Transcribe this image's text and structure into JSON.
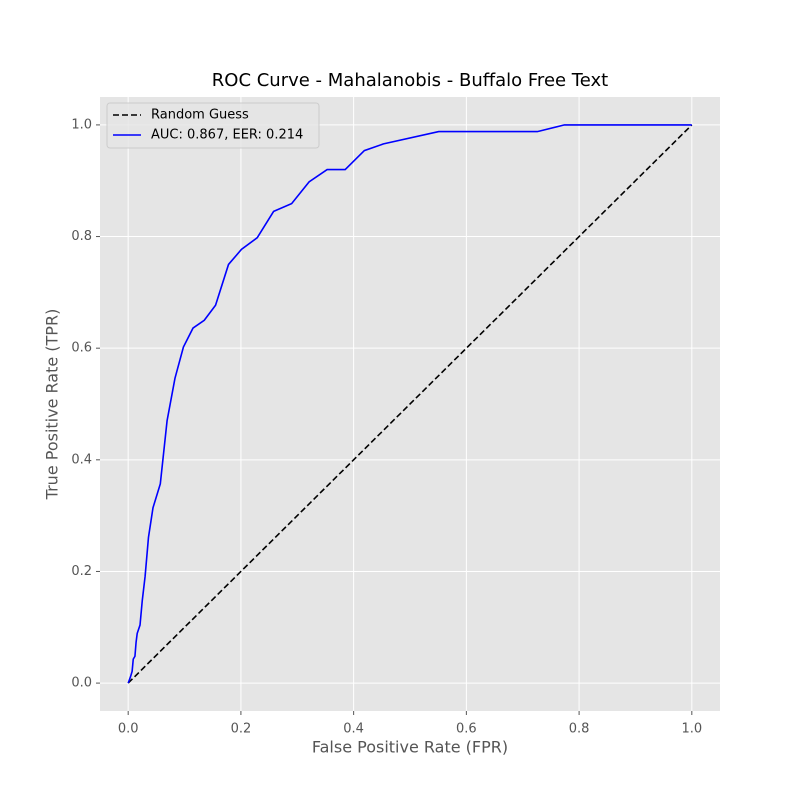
{
  "chart_data": {
    "type": "line",
    "title": "ROC Curve - Mahalanobis - Buffalo Free Text",
    "x_label": "False Positive Rate (FPR)",
    "y_label": "True Positive Rate (TPR)",
    "xlim": [
      -0.05,
      1.05
    ],
    "ylim": [
      -0.05,
      1.05
    ],
    "xticks": [
      {
        "value": 0,
        "label": "0.0"
      },
      0.2,
      0.4,
      0.6,
      0.8,
      {
        "value": 1,
        "label": "1.0"
      }
    ],
    "yticks": [
      {
        "value": 0,
        "label": "0.0"
      },
      0.2,
      0.4,
      0.6,
      0.8,
      {
        "value": 1,
        "label": "1.0"
      }
    ],
    "grid": true,
    "legend": "upper left",
    "series": [
      {
        "name": "Random Guess",
        "color": "#000000",
        "linestyle": "dashed",
        "x": [
          0,
          1
        ],
        "values": [
          0,
          1
        ]
      },
      {
        "name": "AUC: 0.867, EER: 0.214",
        "color": "#0000ff",
        "linestyle": "solid",
        "x": [
          0,
          0.004,
          0.007,
          0.009,
          0.012,
          0.014,
          0.016,
          0.021,
          0.025,
          0.03,
          0.036,
          0.044,
          0.057,
          0.069,
          0.083,
          0.098,
          0.115,
          0.135,
          0.155,
          0.178,
          0.201,
          0.229,
          0.258,
          0.29,
          0.321,
          0.353,
          0.385,
          0.419,
          0.453,
          0.551,
          0.726,
          0.774,
          1
        ],
        "values": [
          0,
          0.011,
          0.021,
          0.043,
          0.048,
          0.073,
          0.089,
          0.104,
          0.148,
          0.191,
          0.261,
          0.314,
          0.357,
          0.47,
          0.546,
          0.602,
          0.636,
          0.65,
          0.677,
          0.75,
          0.777,
          0.798,
          0.845,
          0.859,
          0.898,
          0.92,
          0.92,
          0.954,
          0.966,
          0.988,
          0.988,
          1,
          1
        ]
      }
    ]
  }
}
